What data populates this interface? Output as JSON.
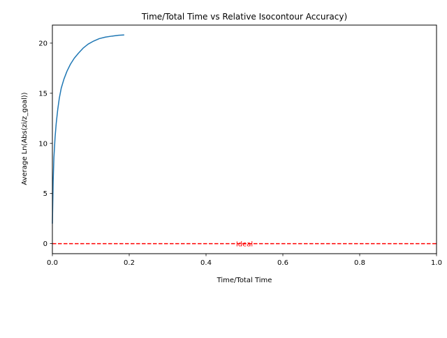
{
  "chart_data": {
    "type": "line",
    "title": "Time/Total Time vs Relative Isocontour Accuracy)",
    "xlabel": "Time/Total Time",
    "ylabel": "Average Ln(Abs(zi/z_goal))",
    "xlim": [
      0.0,
      1.0
    ],
    "ylim": [
      -1.0,
      21.8
    ],
    "xticks": [
      "0.0",
      "0.2",
      "0.4",
      "0.6",
      "0.8",
      "1.0"
    ],
    "yticks": [
      "0",
      "5",
      "10",
      "15",
      "20"
    ],
    "grid": false,
    "series": [
      {
        "color": "#1f77b4",
        "x": [
          0.0,
          0.002,
          0.004,
          0.007,
          0.01,
          0.014,
          0.018,
          0.023,
          0.03,
          0.038,
          0.047,
          0.057,
          0.068,
          0.08,
          0.093,
          0.107,
          0.122,
          0.138,
          0.155,
          0.172,
          0.187
        ],
        "y": [
          2.0,
          6.2,
          8.6,
          10.6,
          12.0,
          13.4,
          14.5,
          15.5,
          16.4,
          17.2,
          17.9,
          18.5,
          19.0,
          19.5,
          19.9,
          20.2,
          20.45,
          20.6,
          20.7,
          20.78,
          20.82
        ]
      }
    ],
    "reference_line": {
      "y": 0,
      "label": "Ideal",
      "color": "#ff0000",
      "style": "dashed"
    }
  }
}
